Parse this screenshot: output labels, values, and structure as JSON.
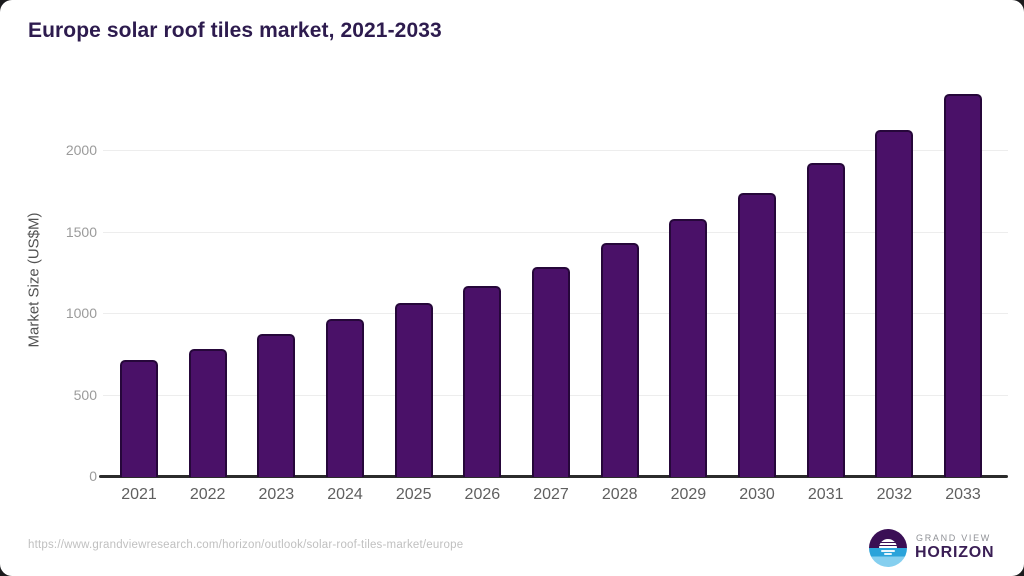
{
  "page": {
    "title": "Europe solar roof tiles market, 2021-2033",
    "source_url": "https://www.grandviewresearch.com/horizon/outlook/solar-roof-tiles-market/europe"
  },
  "logo": {
    "line1": "GRAND VIEW",
    "line2": "HORIZON"
  },
  "chart_data": {
    "type": "bar",
    "title": "Europe solar roof tiles market, 2021-2033",
    "categories": [
      "2021",
      "2022",
      "2023",
      "2024",
      "2025",
      "2026",
      "2027",
      "2028",
      "2029",
      "2030",
      "2031",
      "2032",
      "2033"
    ],
    "values": [
      720,
      785,
      875,
      970,
      1070,
      1170,
      1290,
      1435,
      1580,
      1745,
      1925,
      2130,
      2350
    ],
    "xlabel": "",
    "ylabel": "Market Size (US$M)",
    "yticks": [
      0,
      500,
      1000,
      1500,
      2000
    ],
    "ylim": [
      0,
      2370
    ],
    "grid": true,
    "legend": false,
    "bar_color": "#4a1168",
    "bar_border_color": "#26073a",
    "title_color": "#2d1b4e",
    "axis_color": "#2b2b2b",
    "gridline_color": "#ededed",
    "ytick_color": "#9b9b9b",
    "xtick_color": "#5f5f5f"
  }
}
